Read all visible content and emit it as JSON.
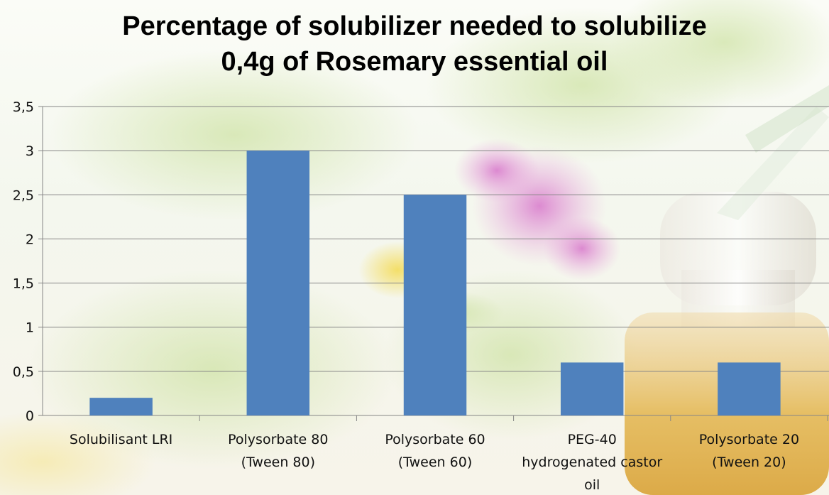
{
  "chart_data": {
    "type": "bar",
    "title_lines": [
      "Percentage of solubilizer needed to solubilize",
      "0,4g of Rosemary essential oil"
    ],
    "xlabel": "",
    "ylabel": "",
    "categories": [
      [
        "Solubilisant LRI"
      ],
      [
        "Polysorbate 80",
        "(Tween 80)"
      ],
      [
        "Polysorbate 60",
        "(Tween 60)"
      ],
      [
        "PEG-40",
        "hydrogenated castor",
        "oil"
      ],
      [
        "Polysorbate 20",
        "(Tween 20)"
      ]
    ],
    "values": [
      0.2,
      3,
      2.5,
      0.6,
      0.6
    ],
    "ylim": [
      0,
      3.5
    ],
    "y_ticks": [
      {
        "value": 0,
        "label": "0"
      },
      {
        "value": 0.5,
        "label": "0,5"
      },
      {
        "value": 1,
        "label": "1"
      },
      {
        "value": 1.5,
        "label": "1,5"
      },
      {
        "value": 2,
        "label": "2"
      },
      {
        "value": 2.5,
        "label": "2,5"
      },
      {
        "value": 3,
        "label": "3"
      },
      {
        "value": 3.5,
        "label": "3,5"
      }
    ],
    "grid": true,
    "legend": "none",
    "colors": {
      "bar": "#4f81bd",
      "grid": "#868686",
      "axis": "#868686"
    }
  }
}
